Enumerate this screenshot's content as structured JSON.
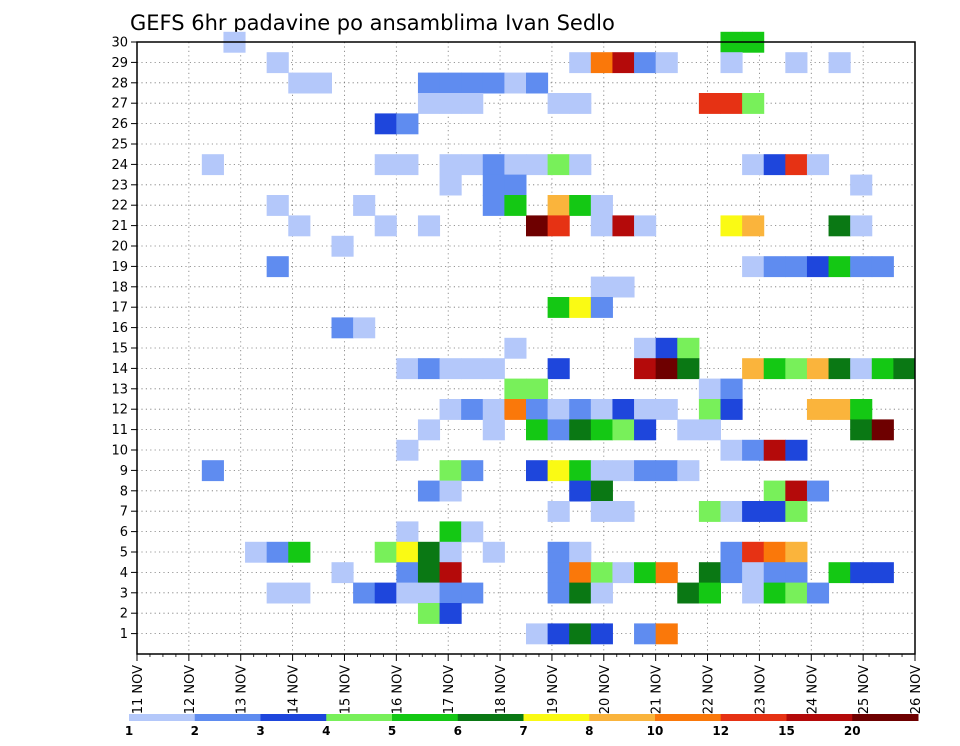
{
  "chart_data": {
    "type": "heatmap",
    "title": "GEFS 6hr padavine po ansamblima Ivan Sedlo",
    "x_ticks": [
      "11 NOV",
      "12 NOV",
      "13 NOV",
      "14 NOV",
      "15 NOV",
      "16 NOV",
      "17 NOV",
      "18 NOV",
      "19 NOV",
      "20 NOV",
      "21 NOV",
      "22 NOV",
      "23 NOV",
      "24 NOV",
      "25 NOV",
      "26 NOV"
    ],
    "y_ticks": [
      1,
      2,
      3,
      4,
      5,
      6,
      7,
      8,
      9,
      10,
      11,
      12,
      13,
      14,
      15,
      16,
      17,
      18,
      19,
      20,
      21,
      22,
      23,
      24,
      25,
      26,
      27,
      28,
      29,
      30
    ],
    "xlim": [
      0,
      60
    ],
    "ylim": [
      0,
      30
    ],
    "grid": true,
    "colorbar": {
      "levels": [
        "1",
        "2",
        "3",
        "4",
        "5",
        "6",
        "7",
        "8",
        "10",
        "12",
        "15",
        "20"
      ],
      "colors": [
        "#b4c8fa",
        "#5f8cf0",
        "#1e46dc",
        "#78f05a",
        "#14c814",
        "#0a7814",
        "#fafa14",
        "#fab43c",
        "#fa780a",
        "#e63214",
        "#b40a0a",
        "#6e0000"
      ]
    },
    "cells": [
      [
        4,
        30,
        1
      ],
      [
        27,
        30,
        5
      ],
      [
        28,
        30,
        5
      ],
      [
        6,
        29,
        1
      ],
      [
        20,
        29,
        1
      ],
      [
        21,
        29,
        9
      ],
      [
        22,
        29,
        11
      ],
      [
        23,
        29,
        2
      ],
      [
        24,
        29,
        1
      ],
      [
        27,
        29,
        1
      ],
      [
        30,
        29,
        1
      ],
      [
        32,
        29,
        1
      ],
      [
        7,
        28,
        1
      ],
      [
        8,
        28,
        1
      ],
      [
        13,
        28,
        2
      ],
      [
        14,
        28,
        2
      ],
      [
        15,
        28,
        2
      ],
      [
        16,
        28,
        2
      ],
      [
        17,
        28,
        1
      ],
      [
        18,
        28,
        2
      ],
      [
        13,
        27,
        1
      ],
      [
        14,
        27,
        1
      ],
      [
        15,
        27,
        1
      ],
      [
        19,
        27,
        1
      ],
      [
        20,
        27,
        1
      ],
      [
        26,
        27,
        10
      ],
      [
        27,
        27,
        10
      ],
      [
        28,
        27,
        4
      ],
      [
        11,
        26,
        3
      ],
      [
        12,
        26,
        2
      ],
      [
        3,
        24,
        1
      ],
      [
        11,
        24,
        1
      ],
      [
        12,
        24,
        1
      ],
      [
        14,
        24,
        1
      ],
      [
        15,
        24,
        1
      ],
      [
        16,
        24,
        2
      ],
      [
        17,
        24,
        1
      ],
      [
        18,
        24,
        1
      ],
      [
        19,
        24,
        4
      ],
      [
        20,
        24,
        1
      ],
      [
        28,
        24,
        1
      ],
      [
        29,
        24,
        3
      ],
      [
        30,
        24,
        10
      ],
      [
        31,
        24,
        1
      ],
      [
        14,
        23,
        1
      ],
      [
        16,
        23,
        2
      ],
      [
        17,
        23,
        2
      ],
      [
        33,
        23,
        1
      ],
      [
        6,
        22,
        1
      ],
      [
        10,
        22,
        1
      ],
      [
        16,
        22,
        2
      ],
      [
        17,
        22,
        5
      ],
      [
        19,
        22,
        8
      ],
      [
        20,
        22,
        5
      ],
      [
        21,
        22,
        1
      ],
      [
        7,
        21,
        1
      ],
      [
        11,
        21,
        1
      ],
      [
        13,
        21,
        1
      ],
      [
        18,
        21,
        12
      ],
      [
        19,
        21,
        10
      ],
      [
        21,
        21,
        1
      ],
      [
        22,
        21,
        11
      ],
      [
        23,
        21,
        1
      ],
      [
        27,
        21,
        7
      ],
      [
        28,
        21,
        8
      ],
      [
        32,
        21,
        6
      ],
      [
        33,
        21,
        1
      ],
      [
        9,
        20,
        1
      ],
      [
        6,
        19,
        2
      ],
      [
        28,
        19,
        1
      ],
      [
        29,
        19,
        2
      ],
      [
        30,
        19,
        2
      ],
      [
        31,
        19,
        3
      ],
      [
        32,
        19,
        5
      ],
      [
        33,
        19,
        2
      ],
      [
        34,
        19,
        2
      ],
      [
        21,
        18,
        1
      ],
      [
        22,
        18,
        1
      ],
      [
        19,
        17,
        5
      ],
      [
        20,
        17,
        7
      ],
      [
        21,
        17,
        2
      ],
      [
        9,
        16,
        2
      ],
      [
        10,
        16,
        1
      ],
      [
        17,
        15,
        1
      ],
      [
        23,
        15,
        1
      ],
      [
        24,
        15,
        3
      ],
      [
        25,
        15,
        4
      ],
      [
        12,
        14,
        1
      ],
      [
        13,
        14,
        2
      ],
      [
        14,
        14,
        1
      ],
      [
        15,
        14,
        1
      ],
      [
        16,
        14,
        1
      ],
      [
        19,
        14,
        3
      ],
      [
        23,
        14,
        11
      ],
      [
        24,
        14,
        12
      ],
      [
        25,
        14,
        6
      ],
      [
        28,
        14,
        8
      ],
      [
        29,
        14,
        5
      ],
      [
        30,
        14,
        4
      ],
      [
        31,
        14,
        8
      ],
      [
        32,
        14,
        6
      ],
      [
        33,
        14,
        1
      ],
      [
        34,
        14,
        5
      ],
      [
        35,
        14,
        6
      ],
      [
        17,
        13,
        4
      ],
      [
        18,
        13,
        4
      ],
      [
        26,
        13,
        1
      ],
      [
        27,
        13,
        2
      ],
      [
        14,
        12,
        1
      ],
      [
        15,
        12,
        2
      ],
      [
        16,
        12,
        1
      ],
      [
        17,
        12,
        9
      ],
      [
        18,
        12,
        2
      ],
      [
        19,
        12,
        1
      ],
      [
        20,
        12,
        2
      ],
      [
        21,
        12,
        1
      ],
      [
        22,
        12,
        3
      ],
      [
        23,
        12,
        1
      ],
      [
        24,
        12,
        1
      ],
      [
        26,
        12,
        4
      ],
      [
        27,
        12,
        3
      ],
      [
        31,
        12,
        8
      ],
      [
        32,
        12,
        8
      ],
      [
        33,
        12,
        5
      ],
      [
        13,
        11,
        1
      ],
      [
        16,
        11,
        1
      ],
      [
        18,
        11,
        5
      ],
      [
        19,
        11,
        2
      ],
      [
        20,
        11,
        6
      ],
      [
        21,
        11,
        5
      ],
      [
        22,
        11,
        4
      ],
      [
        23,
        11,
        3
      ],
      [
        25,
        11,
        1
      ],
      [
        26,
        11,
        1
      ],
      [
        33,
        11,
        6
      ],
      [
        34,
        11,
        12
      ],
      [
        12,
        10,
        1
      ],
      [
        27,
        10,
        1
      ],
      [
        28,
        10,
        2
      ],
      [
        29,
        10,
        11
      ],
      [
        30,
        10,
        3
      ],
      [
        3,
        9,
        2
      ],
      [
        14,
        9,
        4
      ],
      [
        15,
        9,
        2
      ],
      [
        18,
        9,
        3
      ],
      [
        19,
        9,
        7
      ],
      [
        20,
        9,
        5
      ],
      [
        21,
        9,
        1
      ],
      [
        22,
        9,
        1
      ],
      [
        23,
        9,
        2
      ],
      [
        24,
        9,
        2
      ],
      [
        25,
        9,
        1
      ],
      [
        13,
        8,
        2
      ],
      [
        14,
        8,
        1
      ],
      [
        20,
        8,
        3
      ],
      [
        21,
        8,
        6
      ],
      [
        29,
        8,
        4
      ],
      [
        30,
        8,
        11
      ],
      [
        31,
        8,
        2
      ],
      [
        19,
        7,
        1
      ],
      [
        21,
        7,
        1
      ],
      [
        22,
        7,
        1
      ],
      [
        26,
        7,
        4
      ],
      [
        27,
        7,
        1
      ],
      [
        28,
        7,
        3
      ],
      [
        29,
        7,
        3
      ],
      [
        30,
        7,
        4
      ],
      [
        12,
        6,
        1
      ],
      [
        14,
        6,
        5
      ],
      [
        15,
        6,
        1
      ],
      [
        5,
        5,
        1
      ],
      [
        6,
        5,
        2
      ],
      [
        7,
        5,
        5
      ],
      [
        11,
        5,
        4
      ],
      [
        12,
        5,
        7
      ],
      [
        13,
        5,
        6
      ],
      [
        14,
        5,
        1
      ],
      [
        16,
        5,
        1
      ],
      [
        19,
        5,
        2
      ],
      [
        20,
        5,
        1
      ],
      [
        27,
        5,
        2
      ],
      [
        28,
        5,
        10
      ],
      [
        29,
        5,
        9
      ],
      [
        30,
        5,
        8
      ],
      [
        9,
        4,
        1
      ],
      [
        12,
        4,
        2
      ],
      [
        13,
        4,
        6
      ],
      [
        14,
        4,
        11
      ],
      [
        19,
        4,
        2
      ],
      [
        20,
        4,
        9
      ],
      [
        21,
        4,
        4
      ],
      [
        22,
        4,
        1
      ],
      [
        23,
        4,
        5
      ],
      [
        24,
        4,
        9
      ],
      [
        26,
        4,
        6
      ],
      [
        27,
        4,
        2
      ],
      [
        28,
        4,
        1
      ],
      [
        29,
        4,
        2
      ],
      [
        30,
        4,
        2
      ],
      [
        32,
        4,
        5
      ],
      [
        33,
        4,
        3
      ],
      [
        34,
        4,
        3
      ],
      [
        6,
        3,
        1
      ],
      [
        7,
        3,
        1
      ],
      [
        10,
        3,
        2
      ],
      [
        11,
        3,
        3
      ],
      [
        12,
        3,
        1
      ],
      [
        13,
        3,
        1
      ],
      [
        14,
        3,
        2
      ],
      [
        15,
        3,
        2
      ],
      [
        19,
        3,
        2
      ],
      [
        20,
        3,
        6
      ],
      [
        21,
        3,
        1
      ],
      [
        25,
        3,
        6
      ],
      [
        26,
        3,
        5
      ],
      [
        28,
        3,
        1
      ],
      [
        29,
        3,
        5
      ],
      [
        30,
        3,
        4
      ],
      [
        31,
        3,
        2
      ],
      [
        13,
        2,
        4
      ],
      [
        14,
        2,
        3
      ],
      [
        18,
        1,
        1
      ],
      [
        19,
        1,
        3
      ],
      [
        20,
        1,
        6
      ],
      [
        21,
        1,
        3
      ],
      [
        23,
        1,
        2
      ],
      [
        24,
        1,
        9
      ]
    ]
  }
}
